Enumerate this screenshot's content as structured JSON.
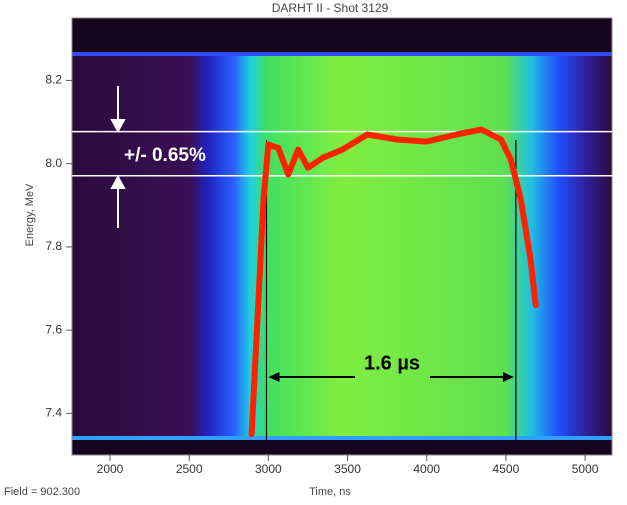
{
  "chart_data": {
    "type": "line",
    "title": "DARHT II - Shot 3129",
    "x_label": "Time, ns",
    "y_label": "Energy, MeV",
    "x": [
      2894,
      2938,
      2969,
      3000,
      3063,
      3125,
      3188,
      3250,
      3344,
      3469,
      3625,
      3813,
      4000,
      4188,
      4344,
      4469,
      4531,
      4594,
      4656,
      4688
    ],
    "values": [
      7.35,
      7.674,
      7.914,
      8.046,
      8.038,
      7.974,
      8.034,
      7.99,
      8.014,
      8.034,
      8.07,
      8.058,
      8.053,
      8.07,
      8.082,
      8.058,
      8.01,
      7.914,
      7.77,
      7.66
    ],
    "color": "#ff2200",
    "xlim": [
      1760,
      5170
    ],
    "ylim": [
      7.3,
      8.35
    ],
    "xticks": [
      2000,
      2500,
      3000,
      3500,
      4000,
      4500,
      5000
    ],
    "yticks": [
      7.4,
      7.6,
      7.8,
      {
        "value": 8.0,
        "label": "8.0"
      },
      8.2
    ],
    "hlines": [
      8.077,
      7.971
    ],
    "vlines": [
      2988,
      4563
    ],
    "band_label": "+/- 0.65%",
    "span_label": "1.6 µs",
    "footer": "Field = 902.300"
  }
}
